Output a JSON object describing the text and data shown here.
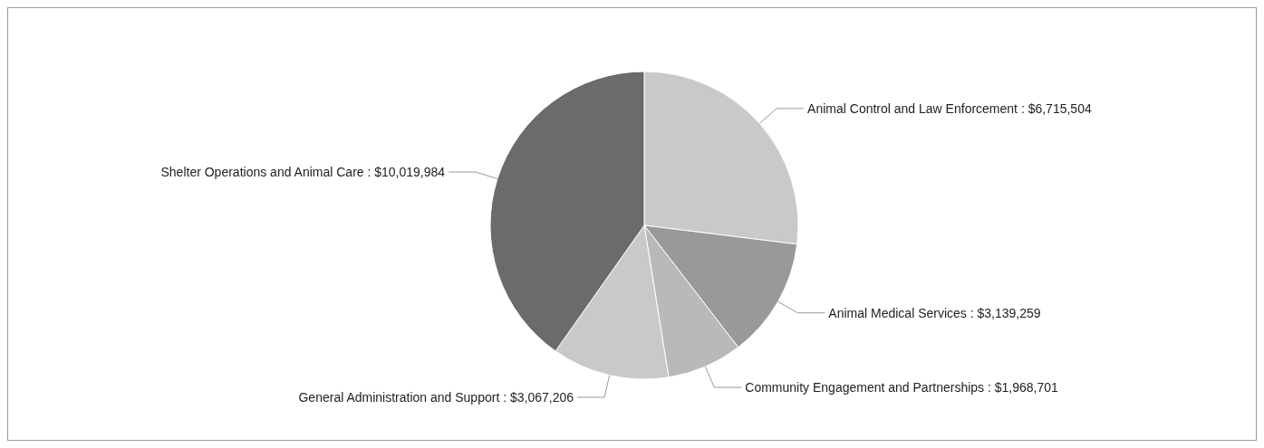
{
  "chart_data": {
    "type": "pie",
    "categories": [
      "Animal Control and Law Enforcement",
      "Animal Medical Services",
      "Community Engagement and Partnerships",
      "General Administration and Support",
      "Shelter Operations and Animal Care"
    ],
    "values": [
      6715504,
      3139259,
      1968701,
      3067206,
      10019984
    ],
    "value_labels": [
      "$6,715,504",
      "$3,139,259",
      "$1,968,701",
      "$3,067,206",
      "$10,019,984"
    ],
    "colors": [
      "#c9c9c9",
      "#999999",
      "#b9b9b9",
      "#c9c9c9",
      "#6b6b6b"
    ],
    "legend": false
  }
}
